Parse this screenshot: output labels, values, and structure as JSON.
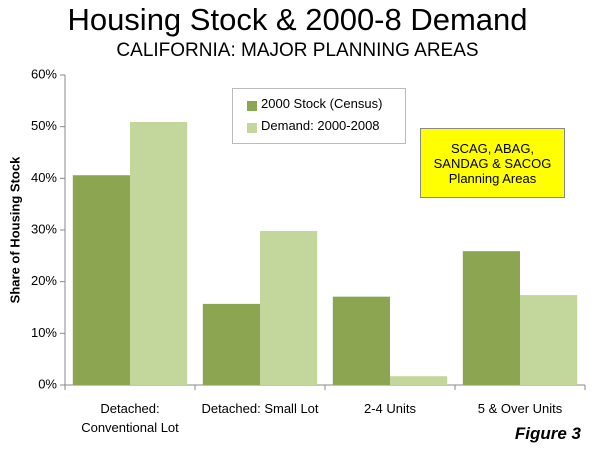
{
  "chart_data": {
    "type": "bar",
    "title": "Housing Stock & 2000-8 Demand",
    "subtitle": "CALIFORNIA: MAJOR PLANNING AREAS",
    "y_label": "Share of Housing Stock",
    "categories": [
      "Detached:\nConventional Lot",
      "Detached:  Small Lot",
      "2-4 Units",
      "5 & Over Units"
    ],
    "series": [
      {
        "name": "2000 Stock (Census)",
        "color": "#8ca550",
        "values": [
          40.6,
          15.7,
          17.1,
          25.9
        ]
      },
      {
        "name": "Demand: 2000-2008",
        "color": "#c3d69b",
        "values": [
          50.9,
          29.8,
          1.7,
          17.4
        ]
      }
    ],
    "ylim": [
      0,
      60
    ],
    "yticks": [
      {
        "value": 0,
        "label": "0%"
      },
      {
        "value": 10,
        "label": "10%"
      },
      {
        "value": 20,
        "label": "20%"
      },
      {
        "value": 30,
        "label": "30%"
      },
      {
        "value": 40,
        "label": "40%"
      },
      {
        "value": 50,
        "label": "50%"
      },
      {
        "value": 60,
        "label": "60%"
      }
    ],
    "grid": false,
    "legend": "top",
    "annotations": [
      "SCAG, ABAG,\nSANDAG & SACOG\nPlanning Areas",
      "Figure 3"
    ]
  }
}
